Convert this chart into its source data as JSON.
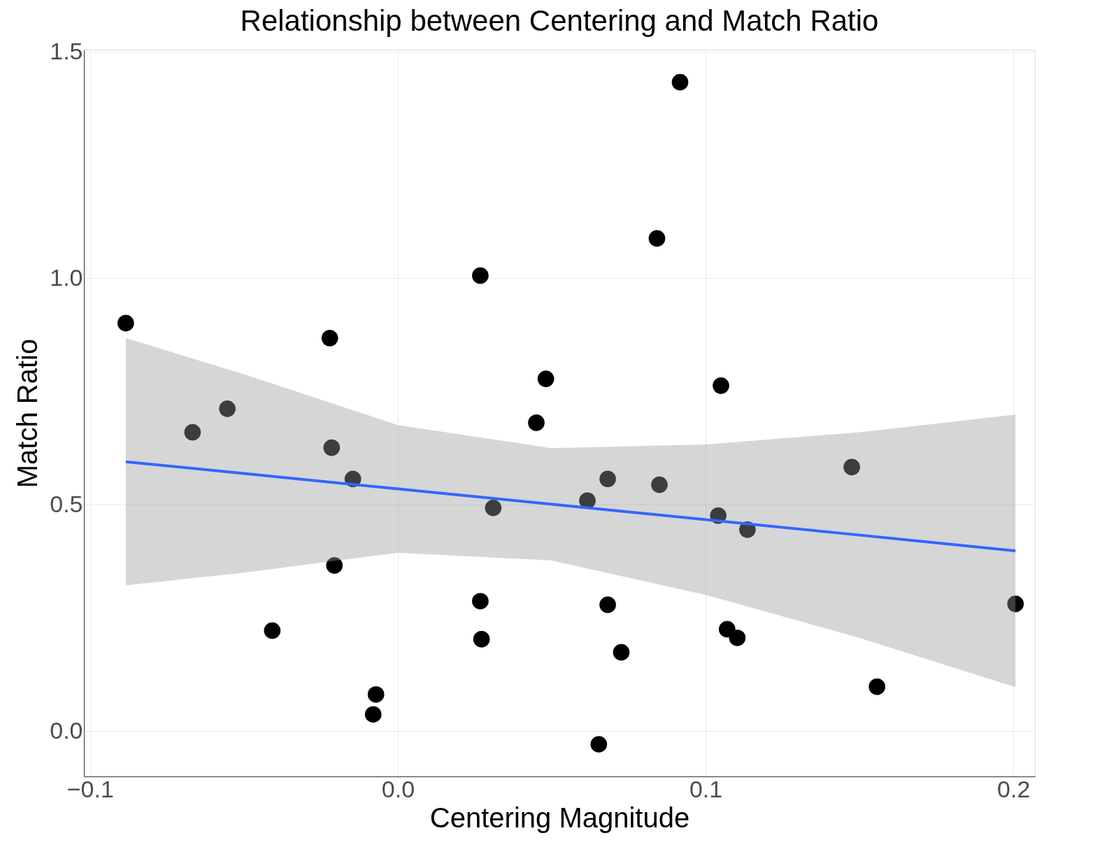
{
  "chart_data": {
    "type": "scatter",
    "title": "Relationship between Centering and Match Ratio",
    "xlabel": "Centering Magnitude",
    "ylabel": "Match Ratio",
    "x": [
      -0.0884,
      -0.0667,
      -0.0554,
      -0.0408,
      -0.0221,
      -0.0215,
      -0.0206,
      -0.0146,
      -0.0071,
      -0.008,
      0.0268,
      0.031,
      0.0268,
      0.0272,
      0.045,
      0.0481,
      0.0616,
      0.0682,
      0.0682,
      0.0653,
      0.0726,
      0.0842,
      0.085,
      0.0917,
      0.105,
      0.1041,
      0.1136,
      0.107,
      0.1103,
      0.1475,
      0.1557,
      0.2007
    ],
    "series": [
      {
        "color": "#000000",
        "values": [
          0.901,
          0.66,
          0.712,
          0.222,
          0.868,
          0.626,
          0.366,
          0.557,
          0.081,
          0.037,
          1.006,
          0.493,
          0.287,
          0.203,
          0.681,
          0.778,
          0.509,
          0.557,
          0.279,
          -0.029,
          0.174,
          1.088,
          0.544,
          1.433,
          0.763,
          0.476,
          0.445,
          0.225,
          0.206,
          0.583,
          0.098,
          0.281
        ]
      },
      {
        "type": "line",
        "marker": "none",
        "color": "#3366ff",
        "x": [
          -0.0884,
          -0.05,
          0,
          0.05,
          0.1,
          0.15,
          0.2007
        ],
        "values": [
          0.595,
          0.569,
          0.535,
          0.501,
          0.467,
          0.433,
          0.398
        ],
        "lower": [
          0.322,
          0.35,
          0.394,
          0.377,
          0.301,
          0.206,
          0.097
        ],
        "upper": [
          0.868,
          0.788,
          0.676,
          0.625,
          0.633,
          0.66,
          0.699
        ]
      }
    ],
    "xlim": [
      -0.102,
      0.207
    ],
    "ylim": [
      -0.1,
      1.505
    ],
    "xticks": [
      {
        "value": -0.1,
        "label": "−0.1"
      },
      {
        "value": 0.0,
        "label": "0.0"
      },
      {
        "value": 0.1,
        "label": "0.1"
      },
      {
        "value": 0.2,
        "label": "0.2"
      }
    ],
    "yticks": [
      {
        "value": 0.0,
        "label": "0.0"
      },
      {
        "value": 0.5,
        "label": "0.5"
      },
      {
        "value": 1.0,
        "label": "1.0"
      },
      {
        "value": 1.5,
        "label": "1.5"
      }
    ],
    "grid": true,
    "marker": "circle",
    "line_style": "solid"
  }
}
